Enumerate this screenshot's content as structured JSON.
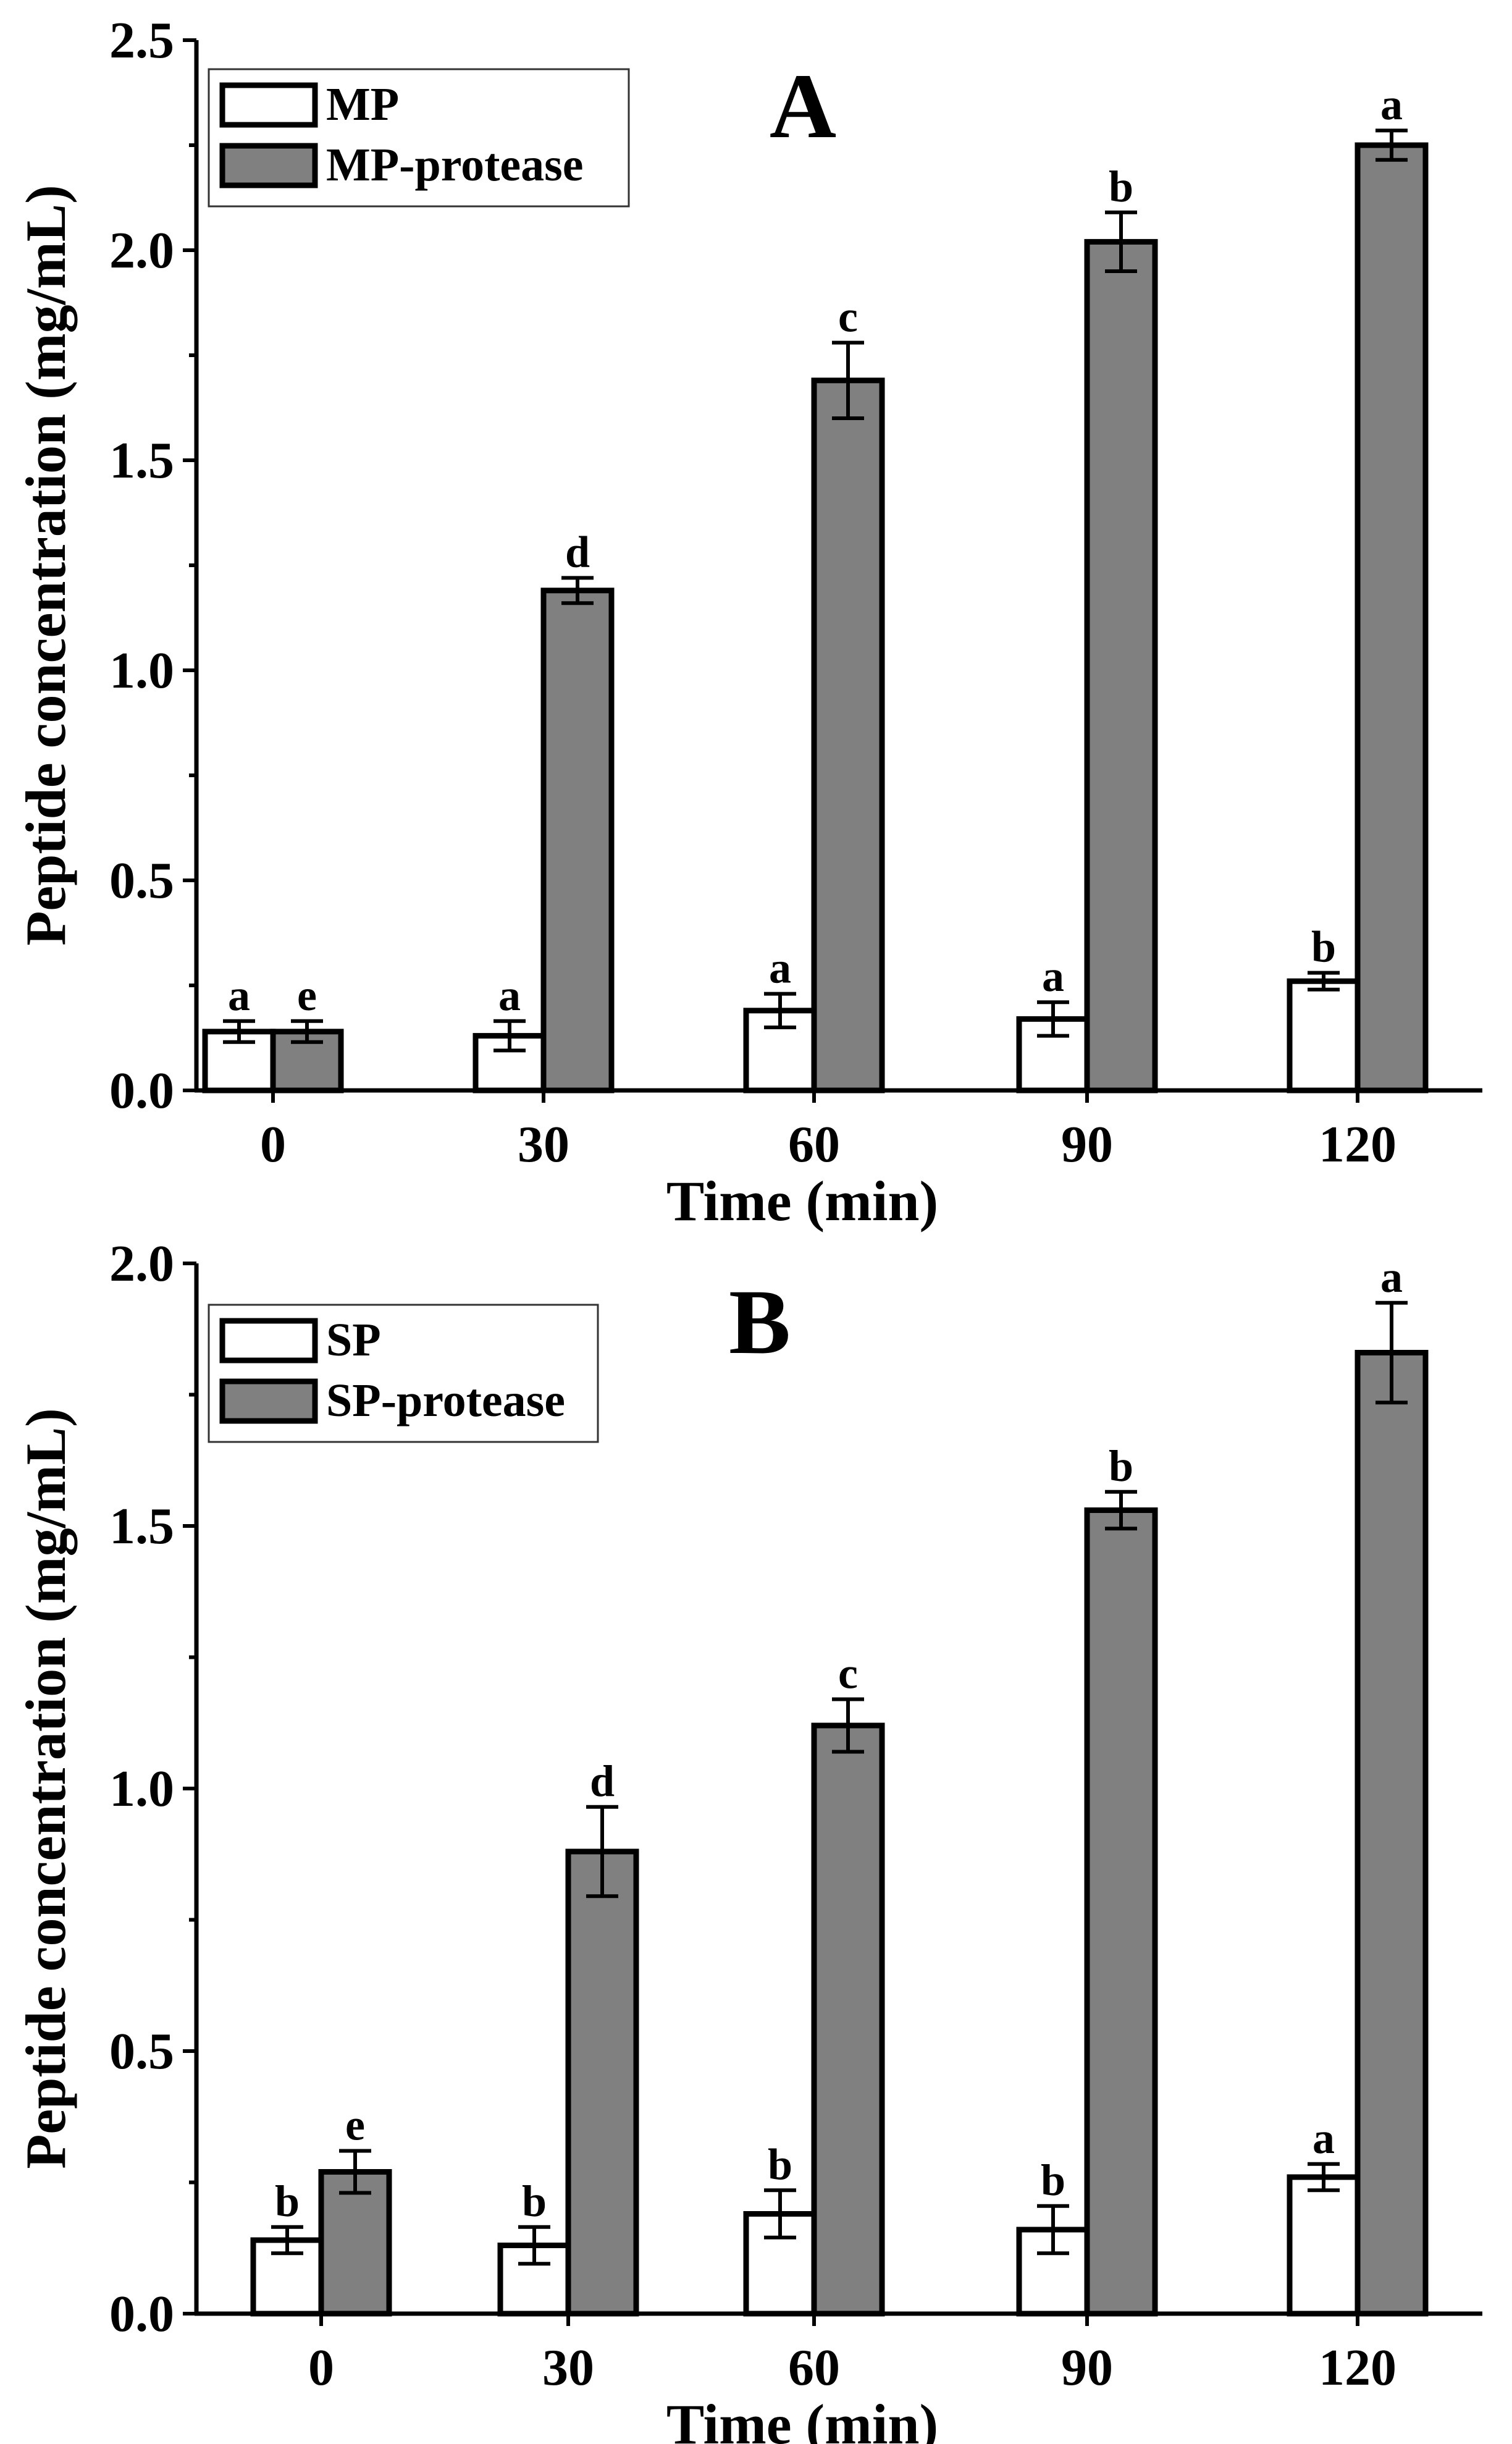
{
  "colors": {
    "control": "#ffffff",
    "protease": "#808080",
    "axis": "#000000"
  },
  "chart_data": [
    {
      "id": "A",
      "type": "bar",
      "panel_label": "A",
      "xlabel": "Time (min)",
      "ylabel": "Peptide concentration (mg/mL)",
      "categories": [
        "0",
        "30",
        "60",
        "90",
        "120"
      ],
      "ylim": [
        0,
        2.5
      ],
      "yticks": [
        0.0,
        0.5,
        1.0,
        1.5,
        2.0,
        2.5
      ],
      "ytick_labels": [
        "0.0",
        "0.5",
        "1.0",
        "1.5",
        "2.0",
        "2.5"
      ],
      "legend_position": "top-left",
      "series": [
        {
          "name": "MP",
          "fill": "control",
          "values": [
            0.14,
            0.13,
            0.19,
            0.17,
            0.26
          ],
          "errors": [
            0.025,
            0.035,
            0.04,
            0.04,
            0.02
          ],
          "labels": [
            "a",
            "a",
            "a",
            "a",
            "b"
          ]
        },
        {
          "name": "MP-protease",
          "fill": "protease",
          "values": [
            0.14,
            1.19,
            1.69,
            2.02,
            2.25
          ],
          "errors": [
            0.025,
            0.03,
            0.09,
            0.07,
            0.035
          ],
          "labels": [
            "e",
            "d",
            "c",
            "b",
            "a"
          ]
        }
      ]
    },
    {
      "id": "B",
      "type": "bar",
      "panel_label": "B",
      "xlabel": "Time (min)",
      "ylabel": "Peptide concentration (mg/mL)",
      "categories": [
        "0",
        "30",
        "60",
        "90",
        "120"
      ],
      "ylim": [
        0,
        2.0
      ],
      "yticks": [
        0.0,
        0.5,
        1.0,
        1.5,
        2.0
      ],
      "ytick_labels": [
        "0.0",
        "0.5",
        "1.0",
        "1.5",
        "2.0"
      ],
      "legend_position": "top-left",
      "series": [
        {
          "name": "SP",
          "fill": "control",
          "values": [
            0.14,
            0.13,
            0.19,
            0.16,
            0.26
          ],
          "errors": [
            0.025,
            0.035,
            0.045,
            0.045,
            0.025
          ],
          "labels": [
            "b",
            "b",
            "b",
            "b",
            "a"
          ]
        },
        {
          "name": "SP-protease",
          "fill": "protease",
          "values": [
            0.27,
            0.88,
            1.12,
            1.53,
            1.83
          ],
          "errors": [
            0.04,
            0.085,
            0.05,
            0.035,
            0.095
          ],
          "labels": [
            "e",
            "d",
            "c",
            "b",
            "a"
          ]
        }
      ]
    }
  ]
}
